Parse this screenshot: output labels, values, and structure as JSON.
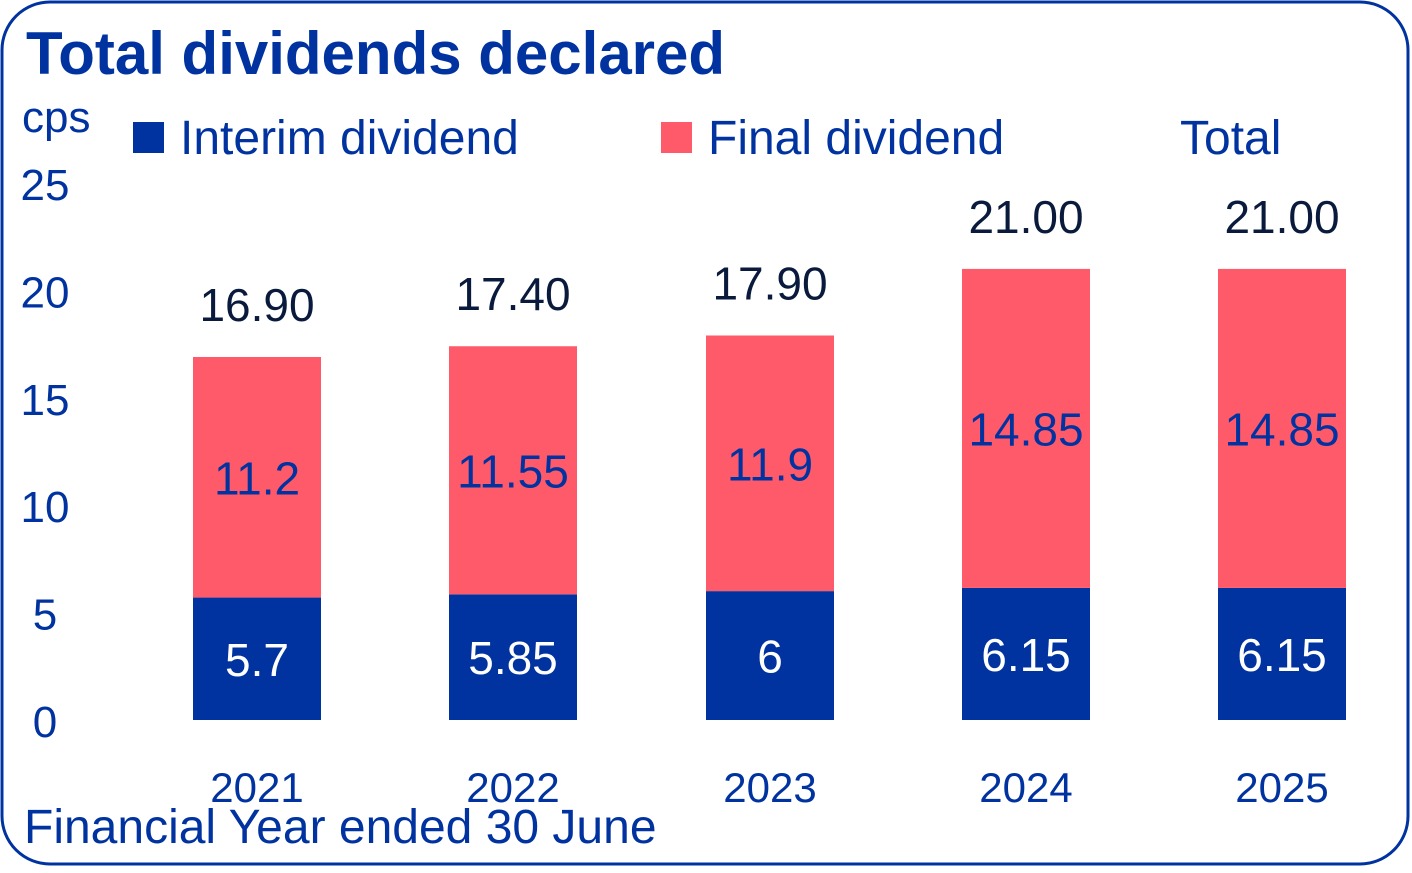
{
  "chart_data": {
    "type": "bar",
    "stacked": true,
    "title": "Total dividends declared",
    "ylabel": "cps",
    "xlabel": "Financial Year ended 30 June",
    "ylim": [
      0,
      25
    ],
    "yticks": [
      0,
      5,
      10,
      15,
      20,
      25
    ],
    "categories": [
      "2021",
      "2022",
      "2023",
      "2024",
      "2025"
    ],
    "series": [
      {
        "name": "Interim dividend",
        "color": "#0033A0",
        "values": [
          5.7,
          5.85,
          6,
          6.15,
          6.15
        ],
        "labels": [
          "5.7",
          "5.85",
          "6",
          "6.15",
          "6.15"
        ]
      },
      {
        "name": "Final dividend",
        "color": "#FF5A6A",
        "values": [
          11.2,
          11.55,
          11.9,
          14.85,
          14.85
        ],
        "labels": [
          "11.2",
          "11.55",
          "11.9",
          "14.85",
          "14.85"
        ]
      }
    ],
    "totals": {
      "name": "Total",
      "values": [
        16.9,
        17.4,
        17.9,
        21.0,
        21.0
      ],
      "labels": [
        "16.90",
        "17.40",
        "17.90",
        "21.00",
        "21.00"
      ]
    },
    "legend": "top",
    "grid": false
  }
}
